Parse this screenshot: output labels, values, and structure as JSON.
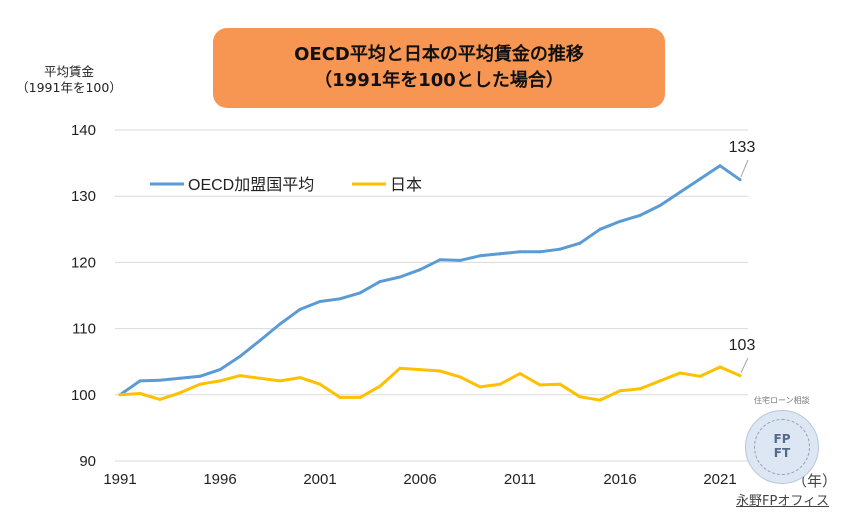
{
  "title": {
    "line1": "OECD平均と日本の平均賃金の推移",
    "line2": "（1991年を100とした場合）"
  },
  "y_axis_label": {
    "line1": "平均賃金",
    "line2": "（1991年を100）"
  },
  "x_axis_unit": "（年）",
  "credit": "永野FPオフィス",
  "stamp": {
    "top_text": "住宅ローン相談",
    "line1": "FP",
    "line2": "FT"
  },
  "chart_data": {
    "type": "line",
    "x": [
      1991,
      1992,
      1993,
      1994,
      1995,
      1996,
      1997,
      1998,
      1999,
      2000,
      2001,
      2002,
      2003,
      2004,
      2005,
      2006,
      2007,
      2008,
      2009,
      2010,
      2011,
      2012,
      2013,
      2014,
      2015,
      2016,
      2017,
      2018,
      2019,
      2020,
      2021,
      2022
    ],
    "x_ticks": [
      1991,
      1996,
      2001,
      2006,
      2011,
      2016,
      2021
    ],
    "ylim": [
      90,
      140
    ],
    "y_ticks": [
      90,
      100,
      110,
      120,
      130,
      140
    ],
    "grid": true,
    "legend_position": "upper-left",
    "series": [
      {
        "name": "OECD加盟国平均",
        "color": "#5b9bd5",
        "values": [
          100,
          102.1,
          102.2,
          102.5,
          102.8,
          103.8,
          105.8,
          108.2,
          110.7,
          112.9,
          114.1,
          114.5,
          115.4,
          117.1,
          117.8,
          118.9,
          120.4,
          120.3,
          121.0,
          121.3,
          121.6,
          121.6,
          122.0,
          122.9,
          125.0,
          126.2,
          127.1,
          128.6,
          130.6,
          132.6,
          134.6,
          132.5
        ]
      },
      {
        "name": "日本",
        "color": "#ffc000",
        "values": [
          100,
          100.2,
          99.3,
          100.3,
          101.6,
          102.1,
          102.9,
          102.5,
          102.1,
          102.6,
          101.6,
          99.6,
          99.6,
          101.3,
          104.0,
          103.8,
          103.6,
          102.7,
          101.2,
          101.6,
          103.2,
          101.5,
          101.6,
          99.7,
          99.2,
          100.6,
          100.9,
          102.1,
          103.3,
          102.8,
          104.2,
          102.9
        ]
      }
    ],
    "end_labels": [
      "133",
      "103"
    ]
  }
}
